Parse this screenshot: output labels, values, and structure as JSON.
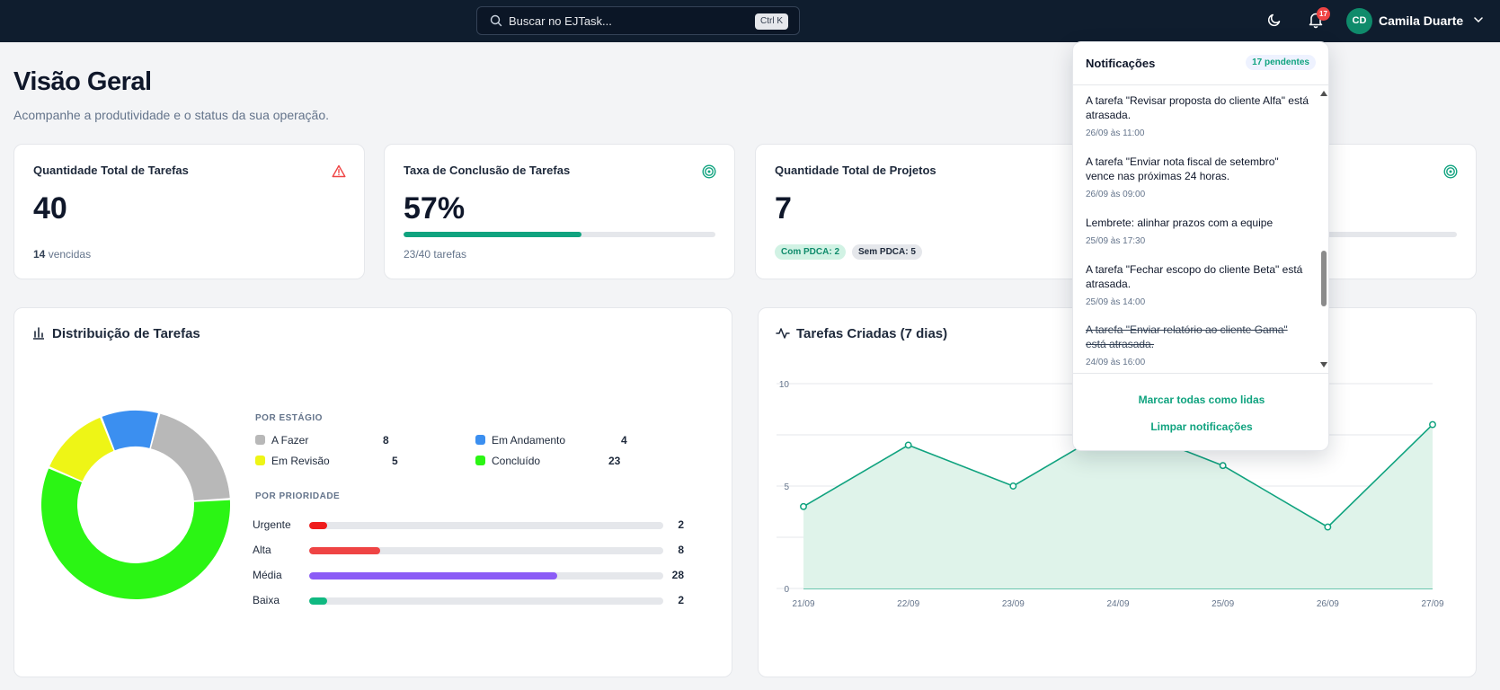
{
  "topbar": {
    "search_placeholder": "Buscar no EJTask...",
    "shortcut": "Ctrl K",
    "bell_count": "17",
    "user_initials": "CD",
    "user_name": "Camila Duarte"
  },
  "header": {
    "title": "Visão Geral",
    "subtitle": "Acompanhe a produtividade e o status da sua operação."
  },
  "stats": {
    "tasks": {
      "title": "Quantidade Total de Tarefas",
      "value": "40",
      "overdue_count": "14",
      "overdue_label": "vencidas"
    },
    "completion": {
      "title": "Taxa de Conclusão de Tarefas",
      "value": "57%",
      "progress": 0.57,
      "foot": "23/40 tarefas"
    },
    "projects": {
      "title": "Quantidade Total de Projetos",
      "value": "7",
      "with_pdca": "Com PDCA: 2",
      "without_pdca": "Sem PDCA: 5"
    },
    "fourth": {
      "progress": 0
    }
  },
  "distribution": {
    "title": "Distribuição de Tarefas",
    "stage_label": "POR ESTÁGIO",
    "priority_label": "POR PRIORIDADE",
    "stages": [
      {
        "name": "A Fazer",
        "count": "8",
        "value": 8,
        "color": "#b8b8b8"
      },
      {
        "name": "Em Andamento",
        "count": "4",
        "value": 4,
        "color": "#3b8ff0"
      },
      {
        "name": "Em Revisão",
        "count": "5",
        "value": 5,
        "color": "#eef516"
      },
      {
        "name": "Concluído",
        "count": "23",
        "value": 23,
        "color": "#2bf514"
      }
    ],
    "priorities": [
      {
        "name": "Urgente",
        "count": "2",
        "fraction": 0.05,
        "color": "#ef1c1c"
      },
      {
        "name": "Alta",
        "count": "8",
        "fraction": 0.2,
        "color": "#ef4444"
      },
      {
        "name": "Média",
        "count": "28",
        "fraction": 0.7,
        "color": "#8b5cf6"
      },
      {
        "name": "Baixa",
        "count": "2",
        "fraction": 0.05,
        "color": "#10b981"
      }
    ]
  },
  "created": {
    "title": "Tarefas Criadas (7 dias)"
  },
  "chart_data": {
    "type": "area",
    "title": "Tarefas Criadas (7 dias)",
    "x": [
      "21/09",
      "22/09",
      "23/09",
      "24/09",
      "25/09",
      "26/09",
      "27/09"
    ],
    "series": [
      {
        "values": [
          4,
          7,
          5,
          8,
          6,
          3,
          8
        ]
      }
    ],
    "y_ticks": [
      "0",
      "5",
      "10"
    ],
    "ylim": [
      0,
      10
    ],
    "grid": true,
    "line_color": "#10a37f",
    "fill_color": "#dff3ea"
  },
  "notifications": {
    "title": "Notificações",
    "pending": "17 pendentes",
    "items": [
      {
        "text": "A tarefa \"Revisar proposta do cliente Alfa\" está atrasada.",
        "time": "26/09 às 11:00"
      },
      {
        "text": "A tarefa \"Enviar nota fiscal de setembro\" vence nas próximas 24 horas.",
        "time": "26/09 às 09:00"
      },
      {
        "text": "Lembrete: alinhar prazos com a equipe",
        "time": "25/09 às 17:30"
      },
      {
        "text": "A tarefa \"Fechar escopo do cliente Beta\" está atrasada.",
        "time": "25/09 às 14:00"
      },
      {
        "text": "A tarefa \"Enviar relatório ao cliente Gama\" está atrasada.",
        "time": "24/09 às 16:00"
      }
    ],
    "mark_all": "Marcar todas como lidas",
    "clear": "Limpar notificações"
  }
}
